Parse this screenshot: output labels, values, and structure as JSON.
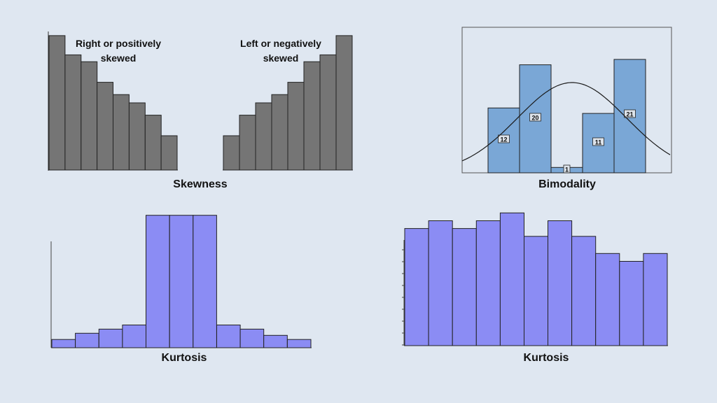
{
  "colors": {
    "background": "#dfe7f1",
    "gray_bar": "#757575",
    "blue_bar": "#7aa7d6",
    "purple_bar": "#8b8cf4",
    "curve": "#1a1a1a"
  },
  "chart_data": [
    {
      "type": "bar",
      "subtitle": "Right or positively skewed",
      "subtitle_lines": [
        "Right or positively",
        "skewed"
      ],
      "values": [
        98,
        84,
        79,
        64,
        55,
        49,
        40,
        25
      ],
      "ylim": [
        0,
        100
      ],
      "group_caption": "Skewness"
    },
    {
      "type": "bar",
      "subtitle": "Left or negatively skewed",
      "subtitle_lines": [
        "Left or negatively",
        "skewed"
      ],
      "values": [
        25,
        40,
        49,
        55,
        64,
        79,
        84,
        98
      ],
      "ylim": [
        0,
        100
      ],
      "group_caption": "Skewness"
    },
    {
      "type": "bar",
      "title": "Bimodality",
      "values": [
        12,
        20,
        1,
        11,
        21
      ],
      "data_labels": [
        "12",
        "20",
        "1",
        "11",
        "21"
      ],
      "ylim": [
        0,
        21.5
      ],
      "overlay": "normal-curve"
    },
    {
      "type": "bar",
      "title": "Kurtosis",
      "values": [
        4,
        7,
        9,
        11,
        64,
        64,
        64,
        11,
        9,
        6,
        4
      ],
      "ylim": [
        0,
        70
      ]
    },
    {
      "type": "bar",
      "title": "Kurtosis",
      "values": [
        75,
        80,
        75,
        80,
        85,
        70,
        80,
        70,
        59,
        54,
        59
      ],
      "ylim": [
        0,
        95
      ]
    }
  ]
}
